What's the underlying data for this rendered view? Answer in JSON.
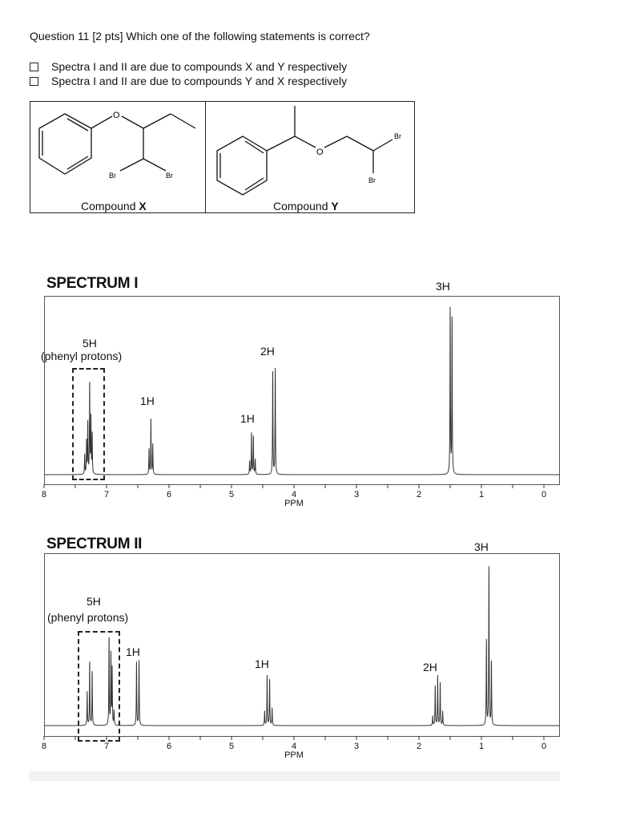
{
  "question": {
    "text": "Question 11 [2 pts] Which one of the following statements is correct?",
    "options": [
      "Spectra I and II are due to compounds X and Y respectively",
      "Spectra I and II are due to compounds Y and X respectively"
    ]
  },
  "structures": {
    "compound_x": {
      "prefix": "Compound ",
      "letter": "X",
      "atoms": [
        "O",
        "Br",
        "Br"
      ]
    },
    "compound_y": {
      "prefix": "Compound ",
      "letter": "Y",
      "atoms": [
        "O",
        "Br",
        "Br"
      ]
    }
  },
  "chart_data": [
    {
      "type": "line",
      "title": "SPECTRUM I",
      "xlabel": "PPM",
      "xlim": [
        8,
        0
      ],
      "x_reversed": true,
      "xticks": [
        "8",
        "7",
        "6",
        "5",
        "4",
        "3",
        "2",
        "1",
        "0"
      ],
      "grid": false,
      "peaks_ppm_relative_intensity": [
        [
          7.35,
          0.12
        ],
        [
          7.32,
          0.2
        ],
        [
          7.3,
          0.31
        ],
        [
          7.27,
          0.54
        ],
        [
          7.25,
          0.33
        ],
        [
          7.23,
          0.24
        ],
        [
          6.32,
          0.15
        ],
        [
          6.29,
          0.33
        ],
        [
          6.26,
          0.18
        ],
        [
          4.71,
          0.08
        ],
        [
          4.68,
          0.25
        ],
        [
          4.65,
          0.23
        ],
        [
          4.62,
          0.09
        ],
        [
          4.34,
          0.61
        ],
        [
          4.3,
          0.64
        ],
        [
          1.5,
          1.0
        ],
        [
          1.47,
          0.94
        ]
      ],
      "annotations": [
        "3H",
        "5H",
        "(phenyl protons)",
        "2H",
        "1H",
        "1H"
      ]
    },
    {
      "type": "line",
      "title": "SPECTRUM II",
      "xlabel": "PPM",
      "xlim": [
        8,
        0
      ],
      "x_reversed": true,
      "xticks": [
        "8",
        "7",
        "6",
        "5",
        "4",
        "3",
        "2",
        "1",
        "0"
      ],
      "grid": false,
      "peaks_ppm_relative_intensity": [
        [
          7.31,
          0.21
        ],
        [
          7.27,
          0.4
        ],
        [
          7.23,
          0.34
        ],
        [
          6.96,
          0.55
        ],
        [
          6.93,
          0.45
        ],
        [
          6.91,
          0.36
        ],
        [
          6.88,
          0.09
        ],
        [
          6.52,
          0.4
        ],
        [
          6.48,
          0.41
        ],
        [
          4.47,
          0.09
        ],
        [
          4.43,
          0.31
        ],
        [
          4.39,
          0.29
        ],
        [
          4.35,
          0.11
        ],
        [
          1.78,
          0.06
        ],
        [
          1.74,
          0.25
        ],
        [
          1.7,
          0.31
        ],
        [
          1.66,
          0.27
        ],
        [
          1.62,
          0.09
        ],
        [
          0.92,
          0.53
        ],
        [
          0.88,
          1.0
        ],
        [
          0.84,
          0.4
        ]
      ],
      "annotations": [
        "3H",
        "5H",
        "(phenyl protons)",
        "1H",
        "1H",
        "2H"
      ]
    }
  ]
}
